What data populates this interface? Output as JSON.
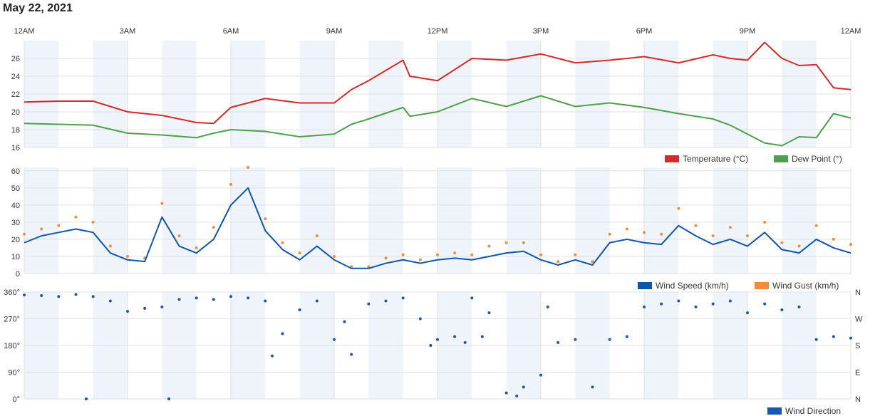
{
  "title": "May 22, 2021",
  "colors": {
    "temperature": "#d42a2a",
    "dewpoint": "#4ea04a",
    "wind_speed": "#1155aa",
    "wind_gust": "#f58b3a",
    "wind_dir": "#1a56b0",
    "night_band": "#eef4fa",
    "grid": "#e0e0e0"
  },
  "chart_data": [
    {
      "type": "line",
      "x_ticks": [
        "12AM",
        "3AM",
        "6AM",
        "9AM",
        "12PM",
        "3PM",
        "6PM",
        "9PM",
        "12AM"
      ],
      "ylim": [
        16,
        28
      ],
      "y_ticks": [
        "16",
        "18",
        "20",
        "22",
        "24",
        "26"
      ],
      "legend": [
        "Temperature (°C)",
        "Dew Point (°)"
      ],
      "x_hours": [
        0,
        1,
        2,
        3,
        3.5,
        4,
        5,
        5.5,
        6,
        7,
        8,
        9,
        9.5,
        10,
        11,
        11.2,
        12,
        13,
        14,
        15,
        16,
        17,
        18,
        19,
        20,
        20.5,
        21,
        21.5,
        22,
        22.5,
        23,
        23.5,
        24
      ],
      "series": [
        {
          "name": "Temperature (°C)",
          "values": [
            21.1,
            21.2,
            21.2,
            20,
            19.8,
            19.6,
            18.8,
            18.7,
            20.5,
            21.5,
            21,
            21,
            22.5,
            23.5,
            25.8,
            24,
            23.5,
            26,
            25.8,
            26.5,
            25.5,
            25.8,
            26.2,
            25.5,
            26.4,
            26,
            25.8,
            27.8,
            26,
            25.2,
            25.3,
            22.7,
            22.5
          ]
        },
        {
          "name": "Dew Point (°)",
          "values": [
            18.7,
            18.6,
            18.5,
            17.6,
            17.5,
            17.4,
            17.1,
            17.6,
            18,
            17.8,
            17.2,
            17.5,
            18.6,
            19.2,
            20.5,
            19.5,
            20,
            21.5,
            20.6,
            21.8,
            20.6,
            21,
            20.5,
            19.8,
            19.2,
            18.5,
            17.5,
            16.5,
            16.2,
            17.2,
            17.1,
            19.8,
            19.3
          ]
        }
      ]
    },
    {
      "type": "line",
      "x_ticks": [
        "12AM",
        "3AM",
        "6AM",
        "9AM",
        "12PM",
        "3PM",
        "6PM",
        "9PM",
        "12AM"
      ],
      "ylim": [
        0,
        62
      ],
      "y_ticks": [
        "0",
        "10",
        "20",
        "30",
        "40",
        "50",
        "60"
      ],
      "legend": [
        "Wind Speed (km/h)",
        "Wind Gust (km/h)"
      ],
      "x_hours": [
        0,
        0.5,
        1,
        1.5,
        2,
        2.5,
        3,
        3.5,
        4,
        4.5,
        5,
        5.5,
        6,
        6.5,
        7,
        7.5,
        8,
        8.5,
        9,
        9.5,
        10,
        10.5,
        11,
        11.5,
        12,
        12.5,
        13,
        13.5,
        14,
        14.5,
        15,
        15.5,
        16,
        16.5,
        17,
        17.5,
        18,
        18.5,
        19,
        19.5,
        20,
        20.5,
        21,
        21.5,
        22,
        22.5,
        23,
        23.5,
        24
      ],
      "series": [
        {
          "name": "Wind Speed (km/h)",
          "values": [
            18,
            22,
            24,
            26,
            24,
            12,
            8,
            7,
            33,
            16,
            12,
            20,
            40,
            50,
            25,
            14,
            8,
            16,
            8,
            3,
            3,
            6,
            8,
            6,
            8,
            9,
            8,
            10,
            12,
            13,
            8,
            5,
            8,
            5,
            18,
            20,
            18,
            17,
            28,
            22,
            17,
            20,
            16,
            24,
            14,
            12,
            20,
            15,
            12
          ]
        },
        {
          "name": "Wind Gust (km/h)",
          "values": [
            23,
            26,
            28,
            33,
            30,
            16,
            10,
            9,
            41,
            22,
            15,
            27,
            52,
            62,
            32,
            18,
            12,
            22,
            10,
            4,
            4,
            9,
            11,
            8,
            11,
            12,
            11,
            16,
            18,
            18,
            11,
            7,
            11,
            7,
            23,
            26,
            24,
            23,
            38,
            28,
            22,
            27,
            22,
            30,
            18,
            16,
            28,
            20,
            17
          ]
        }
      ]
    },
    {
      "type": "scatter",
      "x_ticks": [
        "12AM",
        "3AM",
        "6AM",
        "9AM",
        "12PM",
        "3PM",
        "6PM",
        "9PM",
        "12AM"
      ],
      "ylim": [
        0,
        360
      ],
      "y_ticks": [
        "0°",
        "90°",
        "180°",
        "270°",
        "360°"
      ],
      "y_ticks_right": [
        "N",
        "E",
        "S",
        "W",
        "N"
      ],
      "legend": [
        "Wind Direction"
      ],
      "x_hours": [
        0,
        0.5,
        1,
        1.5,
        1.8,
        2,
        2.5,
        3,
        3.5,
        4,
        4.2,
        4.5,
        5,
        5.5,
        6,
        6.5,
        7,
        7.2,
        7.5,
        8,
        8.5,
        9,
        9.3,
        9.5,
        10,
        10.5,
        11,
        11.5,
        11.8,
        12,
        12.5,
        12.8,
        13,
        13.3,
        13.5,
        14,
        14.3,
        14.5,
        15,
        15.2,
        15.5,
        16,
        16.5,
        17,
        17.5,
        18,
        18.5,
        19,
        19.5,
        20,
        20.5,
        21,
        21.5,
        22,
        22.5,
        23,
        23.5,
        24
      ],
      "values": [
        350,
        348,
        345,
        352,
        0,
        345,
        330,
        295,
        305,
        310,
        0,
        335,
        340,
        335,
        345,
        340,
        330,
        145,
        220,
        300,
        330,
        200,
        260,
        150,
        320,
        330,
        340,
        270,
        180,
        200,
        210,
        190,
        340,
        210,
        290,
        20,
        10,
        40,
        80,
        310,
        190,
        200,
        40,
        200,
        210,
        310,
        320,
        330,
        310,
        320,
        330,
        290,
        320,
        300,
        310,
        200,
        210,
        205
      ]
    }
  ]
}
